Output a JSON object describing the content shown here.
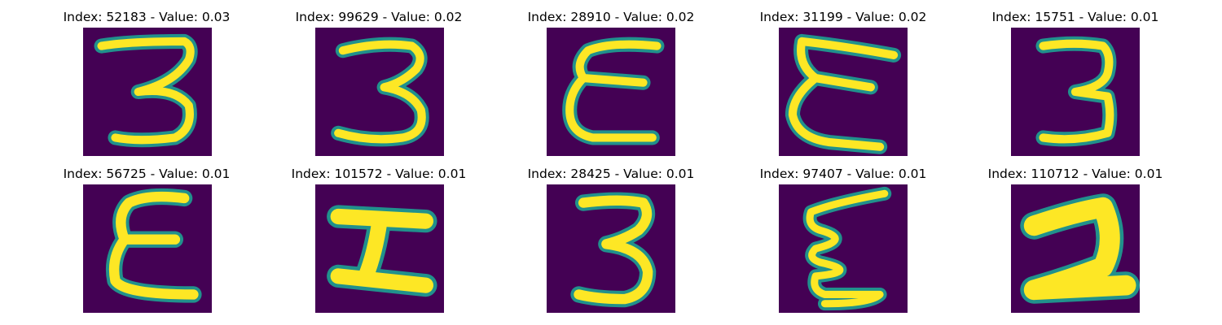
{
  "colors": {
    "background": "#440154",
    "mid": "#21918c",
    "stroke": "#fde725"
  },
  "panels": [
    {
      "title": "Index: 52183 - Value: 0.03",
      "index": 52183,
      "value": 0.03,
      "glyph": "digit-3"
    },
    {
      "title": "Index: 99629 - Value: 0.02",
      "index": 99629,
      "value": 0.02,
      "glyph": "digit-3"
    },
    {
      "title": "Index: 28910 - Value: 0.02",
      "index": 28910,
      "value": 0.02,
      "glyph": "letter-E-curved"
    },
    {
      "title": "Index: 31199 - Value: 0.02",
      "index": 31199,
      "value": 0.02,
      "glyph": "letter-E-curved"
    },
    {
      "title": "Index: 15751 - Value: 0.01",
      "index": 15751,
      "value": 0.01,
      "glyph": "digit-3"
    },
    {
      "title": "Index: 56725 - Value: 0.01",
      "index": 56725,
      "value": 0.01,
      "glyph": "letter-E-curved"
    },
    {
      "title": "Index: 101572 - Value: 0.01",
      "index": 101572,
      "value": 0.01,
      "glyph": "bold-H-shape"
    },
    {
      "title": "Index: 28425 - Value: 0.01",
      "index": 28425,
      "value": 0.01,
      "glyph": "digit-3"
    },
    {
      "title": "Index: 97407 - Value: 0.01",
      "index": 97407,
      "value": 0.01,
      "glyph": "zigzag-E"
    },
    {
      "title": "Index: 110712 - Value: 0.01",
      "index": 110712,
      "value": 0.01,
      "glyph": "bold-2"
    }
  ]
}
